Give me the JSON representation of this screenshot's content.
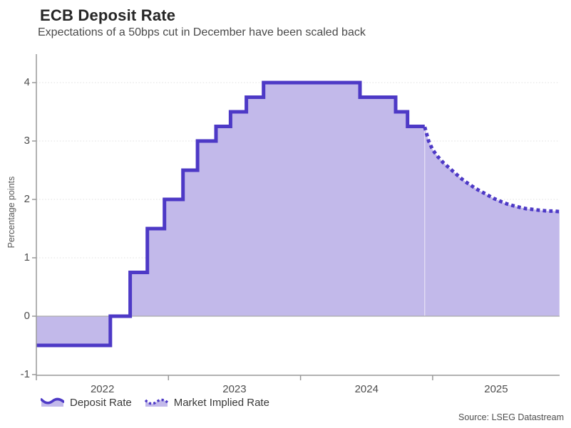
{
  "header": {
    "title": "ECB Deposit Rate",
    "subtitle": "Expectations of a 50bps cut in December have been scaled back"
  },
  "legend": {
    "items": [
      {
        "label": "Deposit Rate",
        "style": "solid"
      },
      {
        "label": "Market Implied Rate",
        "style": "dotted"
      }
    ]
  },
  "footer": {
    "source": "Source: LSEG Datastream"
  },
  "colors": {
    "line": "#4d39c6",
    "area_fill": "#c2b9ea",
    "axis": "#999999",
    "zero_line": "#ababab",
    "gridline": "#e0e0e0",
    "tick_label": "#4d4d4d"
  },
  "chart_data": {
    "type": "area",
    "title": "ECB Deposit Rate",
    "subtitle": "Expectations of a 50bps cut in December have been scaled back",
    "xlabel": "",
    "ylabel": "Percentage points",
    "ylim": [
      -1,
      4
    ],
    "xlim": [
      2022.0,
      2025.97
    ],
    "x_ticks": [
      2022,
      2023,
      2024,
      2025
    ],
    "x_tick_labels": [
      "2022",
      "2023",
      "2024",
      "2025"
    ],
    "y_ticks": [
      -1,
      0,
      1,
      2,
      3,
      4
    ],
    "grid": "horizontal-dotted",
    "baseline": 0,
    "legend_position": "bottom-left",
    "series": [
      {
        "name": "Deposit Rate",
        "type": "step-area",
        "line_style": "solid",
        "points": [
          [
            2022.0,
            -0.5
          ],
          [
            2022.56,
            0.0
          ],
          [
            2022.71,
            0.75
          ],
          [
            2022.84,
            1.5
          ],
          [
            2022.97,
            2.0
          ],
          [
            2023.11,
            2.5
          ],
          [
            2023.22,
            3.0
          ],
          [
            2023.36,
            3.25
          ],
          [
            2023.47,
            3.5
          ],
          [
            2023.59,
            3.75
          ],
          [
            2023.72,
            4.0
          ],
          [
            2024.45,
            3.75
          ],
          [
            2024.72,
            3.5
          ],
          [
            2024.81,
            3.25
          ],
          [
            2024.94,
            3.25
          ]
        ]
      },
      {
        "name": "Market Implied Rate",
        "type": "line-area",
        "line_style": "dotted",
        "points": [
          [
            2024.94,
            3.24
          ],
          [
            2024.97,
            3.0
          ],
          [
            2025.0,
            2.85
          ],
          [
            2025.04,
            2.73
          ],
          [
            2025.08,
            2.63
          ],
          [
            2025.13,
            2.53
          ],
          [
            2025.17,
            2.45
          ],
          [
            2025.21,
            2.37
          ],
          [
            2025.25,
            2.3
          ],
          [
            2025.29,
            2.24
          ],
          [
            2025.33,
            2.18
          ],
          [
            2025.38,
            2.12
          ],
          [
            2025.42,
            2.07
          ],
          [
            2025.46,
            2.02
          ],
          [
            2025.5,
            1.98
          ],
          [
            2025.54,
            1.94
          ],
          [
            2025.58,
            1.91
          ],
          [
            2025.63,
            1.88
          ],
          [
            2025.67,
            1.86
          ],
          [
            2025.71,
            1.84
          ],
          [
            2025.75,
            1.83
          ],
          [
            2025.79,
            1.82
          ],
          [
            2025.83,
            1.81
          ],
          [
            2025.88,
            1.8
          ],
          [
            2025.92,
            1.8
          ],
          [
            2025.96,
            1.79
          ]
        ]
      }
    ]
  }
}
